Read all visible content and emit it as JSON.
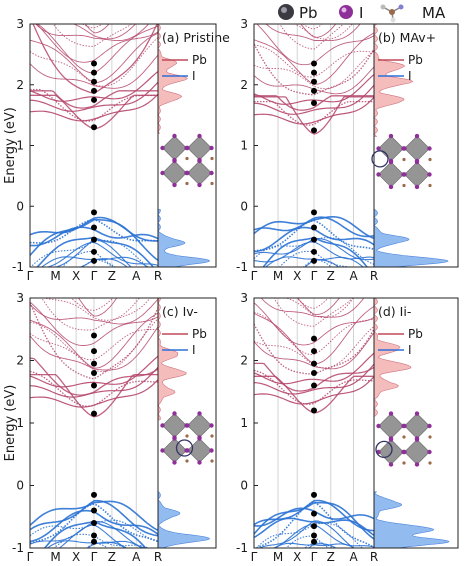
{
  "header_legend": {
    "pb": "Pb",
    "i": "I",
    "ma": "MA"
  },
  "colors": {
    "pb_band": "#b5456a",
    "pb_dos": "#c0485a",
    "i_dos": "#2e6fd8",
    "valence_band": "#2a72d4",
    "fermi_marker": "#000000",
    "octahedron": "#8a8a8a",
    "i_atom": "#8e2f9a",
    "ma_molecule": "#9a6a4a"
  },
  "chart_data": [
    {
      "type": "line",
      "panel": "(a) Pristine",
      "title": "(a) Pristine",
      "ylabel": "Energy (eV)",
      "ylim": [
        -1,
        3
      ],
      "yticks": [
        "-1",
        "0",
        "1",
        "2",
        "3"
      ],
      "kpath": [
        "Γ",
        "M",
        "X",
        "Γ",
        "Z",
        "A",
        "R"
      ],
      "legend": [
        "Pb",
        "I"
      ],
      "vbm_gamma": -0.1,
      "cbm_gamma": 1.3,
      "gamma_markers": [
        2.35,
        2.2,
        2.05,
        1.9,
        1.75,
        1.3,
        -0.1,
        -0.35,
        -0.55,
        -0.75,
        -0.9
      ],
      "series": [
        {
          "name": "Pb",
          "kind": "dos",
          "peaks": [
            [
              2.35,
              0.35
            ],
            [
              2.1,
              0.55
            ],
            [
              1.8,
              0.45
            ]
          ]
        },
        {
          "name": "I",
          "kind": "dos",
          "peaks": [
            [
              -0.6,
              0.5
            ],
            [
              -0.9,
              1.0
            ]
          ]
        }
      ]
    },
    {
      "type": "line",
      "panel": "(b) MAv+",
      "title": "(b) MAv+",
      "ylabel": "Energy (eV)",
      "ylim": [
        -1,
        3
      ],
      "yticks": [
        "-1",
        "0",
        "1",
        "2",
        "3"
      ],
      "kpath": [
        "Γ",
        "M",
        "X",
        "Γ",
        "Z",
        "A",
        "R"
      ],
      "legend": [
        "Pb",
        "I"
      ],
      "vbm_gamma": -0.1,
      "cbm_gamma": 1.25,
      "gamma_markers": [
        2.35,
        2.2,
        2.05,
        1.9,
        1.7,
        1.25,
        -0.1,
        -0.35,
        -0.55,
        -0.75,
        -0.9
      ],
      "series": [
        {
          "name": "Pb",
          "kind": "dos",
          "peaks": [
            [
              2.3,
              0.4
            ],
            [
              2.05,
              0.5
            ],
            [
              1.75,
              0.4
            ]
          ]
        },
        {
          "name": "I",
          "kind": "dos",
          "peaks": [
            [
              -0.55,
              0.45
            ],
            [
              -0.9,
              1.0
            ]
          ]
        }
      ]
    },
    {
      "type": "line",
      "panel": "(c) Iv-",
      "title": "(c) Iv-",
      "ylabel": "Energy (eV)",
      "ylim": [
        -1,
        3
      ],
      "yticks": [
        "-1",
        "0",
        "1",
        "2",
        "3"
      ],
      "kpath": [
        "Γ",
        "M",
        "X",
        "Γ",
        "Z",
        "A",
        "R"
      ],
      "legend": [
        "Pb",
        "I"
      ],
      "vbm_gamma": -0.15,
      "cbm_gamma": 1.15,
      "gamma_markers": [
        2.4,
        2.15,
        1.95,
        1.8,
        1.6,
        1.15,
        -0.15,
        -0.4,
        -0.6,
        -0.8,
        -0.9
      ],
      "series": [
        {
          "name": "Pb",
          "kind": "dos",
          "peaks": [
            [
              2.1,
              0.4
            ],
            [
              1.8,
              0.55
            ],
            [
              1.5,
              0.3
            ]
          ]
        },
        {
          "name": "I",
          "kind": "dos",
          "peaks": [
            [
              -0.45,
              0.4
            ],
            [
              -0.85,
              1.0
            ]
          ]
        }
      ]
    },
    {
      "type": "line",
      "panel": "(d) Ii-",
      "title": "(d) Ii-",
      "ylabel": "Energy (eV)",
      "ylim": [
        -1,
        3
      ],
      "yticks": [
        "-1",
        "0",
        "1",
        "2",
        "3"
      ],
      "kpath": [
        "Γ",
        "M",
        "X",
        "Γ",
        "Z",
        "A",
        "R"
      ],
      "legend": [
        "Pb",
        "I"
      ],
      "vbm_gamma": -0.15,
      "cbm_gamma": 1.2,
      "gamma_markers": [
        2.35,
        2.15,
        1.95,
        1.8,
        1.6,
        1.2,
        -0.15,
        -0.45,
        -0.65,
        -0.8,
        -0.9
      ],
      "series": [
        {
          "name": "Pb",
          "kind": "dos",
          "peaks": [
            [
              2.2,
              0.35
            ],
            [
              1.9,
              0.5
            ],
            [
              1.6,
              0.3
            ]
          ]
        },
        {
          "name": "I",
          "kind": "dos",
          "peaks": [
            [
              -0.3,
              0.35
            ],
            [
              -0.7,
              0.8
            ],
            [
              -0.9,
              1.0
            ]
          ]
        }
      ]
    }
  ]
}
